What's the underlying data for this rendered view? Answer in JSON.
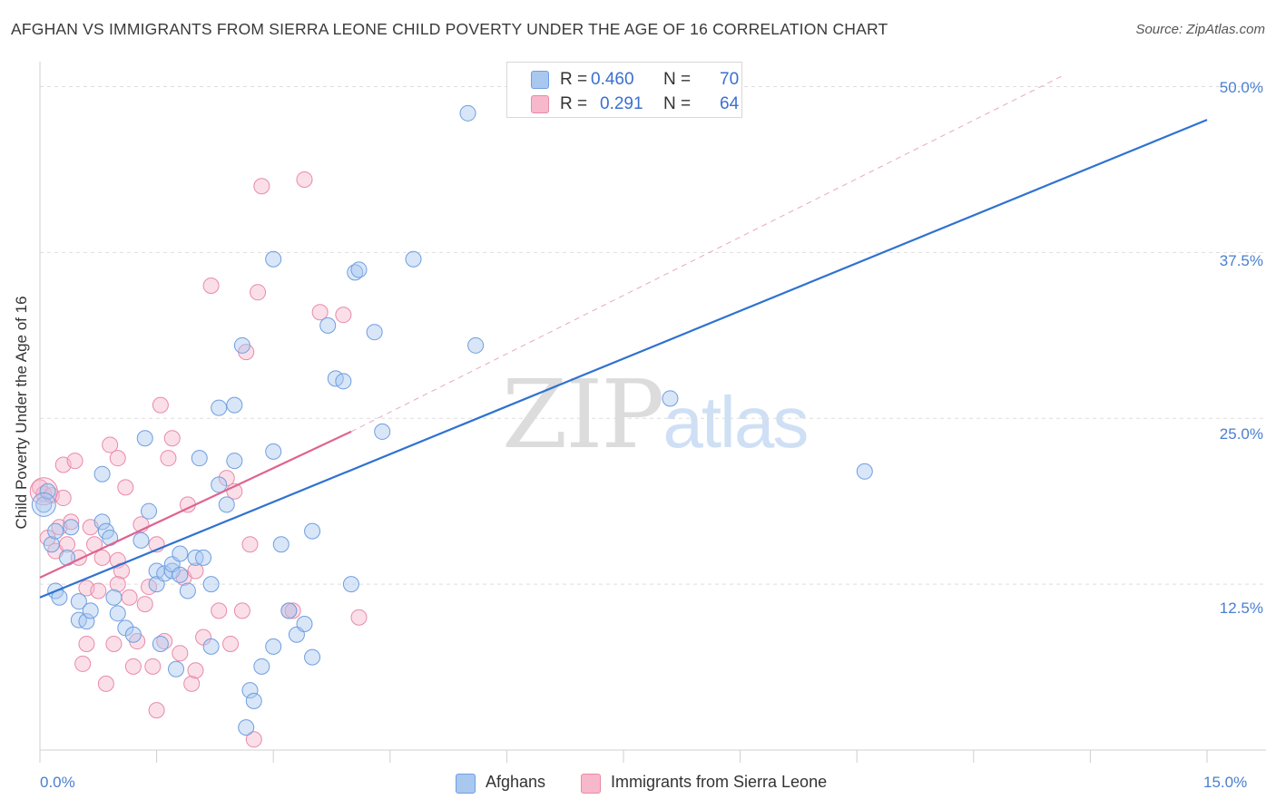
{
  "header": {
    "title": "AFGHAN VS IMMIGRANTS FROM SIERRA LEONE CHILD POVERTY UNDER THE AGE OF 16 CORRELATION CHART",
    "source": "Source: ZipAtlas.com"
  },
  "watermark": {
    "zip": "ZIP",
    "atlas": "atlas"
  },
  "legend": {
    "rows": [
      {
        "r_label": "R =",
        "r_value": "0.460",
        "n_label": "N =",
        "n_value": "70"
      },
      {
        "r_label": "R =",
        "r_value": "0.291",
        "n_label": "N =",
        "n_value": "64"
      }
    ]
  },
  "bottom_legend": {
    "afghans": "Afghans",
    "sierra_leone": "Immigrants from Sierra Leone"
  },
  "axes": {
    "ylabel": "Child Poverty Under the Age of 16",
    "yticks": [
      "50.0%",
      "37.5%",
      "25.0%",
      "12.5%"
    ],
    "xticks": [
      "0.0%",
      "15.0%"
    ]
  },
  "colors": {
    "blue_fill": "#a9c8f0",
    "blue_stroke": "#6f9ee0",
    "blue_line": "#2f72d0",
    "pink_fill": "#f7b8cb",
    "pink_stroke": "#e98aa8",
    "pink_line": "#e0628f",
    "grid": "#dddddd",
    "tick_text": "#4a7fd0"
  },
  "chart_data": {
    "type": "scatter",
    "title": "AFGHAN VS IMMIGRANTS FROM SIERRA LEONE CHILD POVERTY UNDER THE AGE OF 16 CORRELATION CHART",
    "xlabel": "",
    "ylabel": "Child Poverty Under the Age of 16",
    "xlim": [
      0,
      15
    ],
    "ylim": [
      0,
      51.2
    ],
    "grid": true,
    "legend_position": "top-center",
    "series": [
      {
        "name": "Afghans",
        "r": 0.46,
        "n": 70,
        "trend": {
          "x": [
            0,
            15
          ],
          "y": [
            11.5,
            47.5
          ]
        },
        "points": [
          [
            0.05,
            18.5
          ],
          [
            0.1,
            19.5
          ],
          [
            0.15,
            15.5
          ],
          [
            0.2,
            16.5
          ],
          [
            0.2,
            12.0
          ],
          [
            0.25,
            11.5
          ],
          [
            0.35,
            14.5
          ],
          [
            0.4,
            16.8
          ],
          [
            0.5,
            11.2
          ],
          [
            0.5,
            9.8
          ],
          [
            0.6,
            9.7
          ],
          [
            0.65,
            10.5
          ],
          [
            0.8,
            20.8
          ],
          [
            0.8,
            17.2
          ],
          [
            0.85,
            16.5
          ],
          [
            0.9,
            16.0
          ],
          [
            0.95,
            11.5
          ],
          [
            1.0,
            10.3
          ],
          [
            1.1,
            9.2
          ],
          [
            1.2,
            8.7
          ],
          [
            1.3,
            15.8
          ],
          [
            1.35,
            23.5
          ],
          [
            1.4,
            18.0
          ],
          [
            1.5,
            13.5
          ],
          [
            1.5,
            12.5
          ],
          [
            1.55,
            8.0
          ],
          [
            1.6,
            13.3
          ],
          [
            1.7,
            13.5
          ],
          [
            1.7,
            14.0
          ],
          [
            1.75,
            6.1
          ],
          [
            1.8,
            13.2
          ],
          [
            1.8,
            14.8
          ],
          [
            1.9,
            12.0
          ],
          [
            2.0,
            14.5
          ],
          [
            2.05,
            22.0
          ],
          [
            2.1,
            14.5
          ],
          [
            2.2,
            12.5
          ],
          [
            2.2,
            7.8
          ],
          [
            2.3,
            25.8
          ],
          [
            2.3,
            20.0
          ],
          [
            2.4,
            18.5
          ],
          [
            2.5,
            21.8
          ],
          [
            2.5,
            26.0
          ],
          [
            2.6,
            30.5
          ],
          [
            2.65,
            1.7
          ],
          [
            2.7,
            4.5
          ],
          [
            2.75,
            3.7
          ],
          [
            2.85,
            6.3
          ],
          [
            3.0,
            22.5
          ],
          [
            3.0,
            37.0
          ],
          [
            3.0,
            7.8
          ],
          [
            3.1,
            15.5
          ],
          [
            3.2,
            10.5
          ],
          [
            3.3,
            8.7
          ],
          [
            3.4,
            9.5
          ],
          [
            3.5,
            16.5
          ],
          [
            3.5,
            7.0
          ],
          [
            3.7,
            32.0
          ],
          [
            3.8,
            28.0
          ],
          [
            3.9,
            27.8
          ],
          [
            4.0,
            12.5
          ],
          [
            4.05,
            36.0
          ],
          [
            4.1,
            36.2
          ],
          [
            4.3,
            31.5
          ],
          [
            4.4,
            24.0
          ],
          [
            4.8,
            37.0
          ],
          [
            5.5,
            48.0
          ],
          [
            5.6,
            30.5
          ],
          [
            8.1,
            26.5
          ],
          [
            10.6,
            21.0
          ]
        ]
      },
      {
        "name": "Immigrants from Sierra Leone",
        "r": 0.291,
        "n": 64,
        "trend": {
          "x": [
            0,
            4.0
          ],
          "y": [
            13.0,
            24.0
          ]
        },
        "points": [
          [
            0.0,
            19.8
          ],
          [
            0.05,
            19.3
          ],
          [
            0.1,
            16.0
          ],
          [
            0.15,
            19.2
          ],
          [
            0.2,
            15.0
          ],
          [
            0.25,
            16.8
          ],
          [
            0.3,
            21.5
          ],
          [
            0.3,
            19.0
          ],
          [
            0.35,
            15.5
          ],
          [
            0.4,
            17.2
          ],
          [
            0.45,
            21.8
          ],
          [
            0.5,
            14.5
          ],
          [
            0.55,
            6.5
          ],
          [
            0.6,
            8.0
          ],
          [
            0.6,
            12.2
          ],
          [
            0.65,
            16.8
          ],
          [
            0.7,
            15.5
          ],
          [
            0.75,
            12.0
          ],
          [
            0.8,
            14.5
          ],
          [
            0.85,
            5.0
          ],
          [
            0.9,
            23.0
          ],
          [
            0.95,
            8.0
          ],
          [
            1.0,
            22.0
          ],
          [
            1.0,
            14.3
          ],
          [
            1.05,
            13.5
          ],
          [
            1.1,
            19.8
          ],
          [
            1.15,
            11.5
          ],
          [
            1.2,
            6.3
          ],
          [
            1.25,
            8.2
          ],
          [
            1.3,
            17.0
          ],
          [
            1.35,
            11.0
          ],
          [
            1.4,
            12.3
          ],
          [
            1.45,
            6.3
          ],
          [
            1.5,
            3.0
          ],
          [
            1.5,
            15.5
          ],
          [
            1.55,
            26.0
          ],
          [
            1.6,
            8.2
          ],
          [
            1.65,
            22.0
          ],
          [
            1.7,
            23.5
          ],
          [
            1.8,
            7.3
          ],
          [
            1.85,
            13.0
          ],
          [
            1.9,
            18.5
          ],
          [
            1.95,
            5.0
          ],
          [
            2.0,
            6.0
          ],
          [
            2.0,
            13.5
          ],
          [
            2.1,
            8.5
          ],
          [
            2.2,
            35.0
          ],
          [
            2.3,
            10.5
          ],
          [
            2.4,
            20.5
          ],
          [
            2.45,
            8.0
          ],
          [
            2.5,
            19.5
          ],
          [
            2.6,
            10.5
          ],
          [
            2.65,
            30.0
          ],
          [
            2.7,
            15.5
          ],
          [
            2.75,
            0.8
          ],
          [
            2.8,
            34.5
          ],
          [
            2.85,
            42.5
          ],
          [
            3.2,
            10.5
          ],
          [
            3.25,
            10.5
          ],
          [
            3.4,
            43.0
          ],
          [
            3.6,
            33.0
          ],
          [
            3.9,
            32.8
          ],
          [
            4.1,
            10.0
          ],
          [
            1.0,
            12.5
          ]
        ]
      }
    ]
  }
}
